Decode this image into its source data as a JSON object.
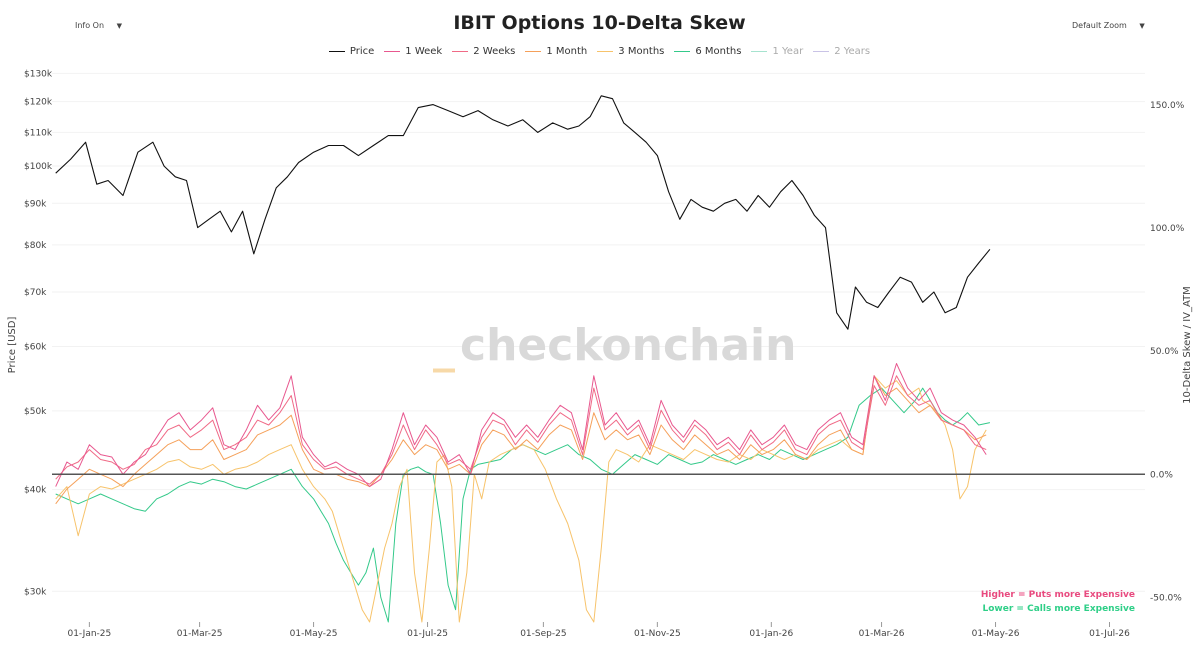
{
  "header": {
    "title": "IBIT Options 10-Delta Skew",
    "info_toggle": "Info On",
    "zoom_select": "Default Zoom",
    "caret": "▼"
  },
  "watermark": {
    "prefix": "_",
    "text": "checkonchain"
  },
  "notes": {
    "higher": "Higher = Puts more Expensive",
    "lower": "Lower = Calls more Expensive"
  },
  "colors": {
    "price": "#111111",
    "w1": "#e8588f",
    "w2": "#f06a86",
    "m1": "#f5a05a",
    "m3": "#f7c36b",
    "m6": "#34c98a",
    "y1": "#a6e3cf",
    "y2": "#c9c3e6",
    "zero_line": "#555555",
    "puts_note": "#e84a7f",
    "calls_note": "#2fcf88",
    "watermark_prefix": "#f7d9a8",
    "watermark_text": "#d9d9d9"
  },
  "chart_data": {
    "type": "line",
    "title": "IBIT Options 10-Delta Skew",
    "x_ticks": [
      "01-Jan-25",
      "01-Mar-25",
      "01-May-25",
      "01-Jul-25",
      "01-Sep-25",
      "01-Nov-25",
      "01-Jan-26",
      "01-Mar-26",
      "01-May-26",
      "01-Jul-26"
    ],
    "x_tick_days": [
      0,
      59,
      120,
      181,
      243,
      304,
      365,
      424,
      485,
      546
    ],
    "x_range_days": [
      -20,
      565
    ],
    "ylabel_left": "Price [USD]",
    "ylabel_right": "10-Delta Skew / IV_ATM",
    "y_left_scale": "log",
    "y_left_range": [
      27500,
      132000
    ],
    "y_left_ticks": [
      30000,
      40000,
      50000,
      60000,
      70000,
      80000,
      90000,
      100000,
      110000,
      120000,
      130000
    ],
    "y_left_tick_labels": [
      "$30k",
      "$40k",
      "$50k",
      "$60k",
      "$70k",
      "$80k",
      "$90k",
      "$100k",
      "$110k",
      "$120k",
      "$130k"
    ],
    "y_right_range": [
      -0.6,
      1.65
    ],
    "y_right_ticks": [
      -0.5,
      0.0,
      0.5,
      1.0,
      1.5
    ],
    "y_right_tick_labels": [
      "-50.0%",
      "0.0%",
      "50.0%",
      "100.0%",
      "150.0%"
    ],
    "legend": [
      {
        "key": "price",
        "name": "Price",
        "visible": true
      },
      {
        "key": "w1",
        "name": "1 Week",
        "visible": true
      },
      {
        "key": "w2",
        "name": "2 Weeks",
        "visible": true
      },
      {
        "key": "m1",
        "name": "1 Month",
        "visible": true
      },
      {
        "key": "m3",
        "name": "3 Months",
        "visible": true
      },
      {
        "key": "m6",
        "name": "6 Months",
        "visible": true
      },
      {
        "key": "y1",
        "name": "1 Year",
        "visible": false
      },
      {
        "key": "y2",
        "name": "2 Years",
        "visible": false
      }
    ],
    "series": [
      {
        "key": "price",
        "axis": "left",
        "x": [
          -18,
          -10,
          -2,
          4,
          10,
          18,
          26,
          34,
          40,
          46,
          52,
          58,
          64,
          70,
          76,
          82,
          88,
          94,
          100,
          106,
          112,
          120,
          128,
          136,
          144,
          152,
          160,
          168,
          176,
          184,
          192,
          200,
          208,
          216,
          224,
          232,
          240,
          248,
          256,
          262,
          268,
          274,
          280,
          286,
          292,
          298,
          304,
          310,
          316,
          322,
          328,
          334,
          340,
          346,
          352,
          358,
          364,
          370,
          376,
          382,
          388,
          394,
          400,
          406,
          410,
          416,
          422,
          428,
          434,
          440,
          446,
          452,
          458,
          464,
          470,
          476,
          482
        ],
        "y": [
          98000,
          102000,
          107000,
          95000,
          96000,
          92000,
          104000,
          107000,
          100000,
          97000,
          96000,
          84000,
          86000,
          88000,
          83000,
          88000,
          78000,
          86000,
          94000,
          97000,
          101000,
          104000,
          106000,
          106000,
          103000,
          106000,
          109000,
          109000,
          118000,
          119000,
          117000,
          115000,
          117000,
          114000,
          112000,
          114000,
          110000,
          113000,
          111000,
          112000,
          115000,
          122000,
          121000,
          113000,
          110000,
          107000,
          103000,
          93000,
          86000,
          91000,
          89000,
          88000,
          90000,
          91000,
          88000,
          92000,
          89000,
          93000,
          96000,
          92000,
          87000,
          84000,
          66000,
          63000,
          71000,
          68000,
          67000,
          70000,
          73000,
          72000,
          68000,
          70000,
          66000,
          67000,
          73000,
          76000,
          79000
        ]
      },
      {
        "key": "w1",
        "axis": "right",
        "x": [
          -18,
          -12,
          -6,
          0,
          6,
          12,
          18,
          24,
          30,
          36,
          42,
          48,
          54,
          60,
          66,
          72,
          78,
          84,
          90,
          96,
          102,
          108,
          114,
          120,
          126,
          132,
          138,
          144,
          150,
          156,
          162,
          168,
          174,
          180,
          186,
          192,
          198,
          204,
          210,
          216,
          222,
          228,
          234,
          240,
          246,
          252,
          258,
          264,
          270,
          276,
          282,
          288,
          294,
          300,
          306,
          312,
          318,
          324,
          330,
          336,
          342,
          348,
          354,
          360,
          366,
          372,
          378,
          384,
          390,
          396,
          402,
          408,
          414,
          420,
          426,
          432,
          438,
          444,
          450,
          456,
          462,
          468,
          474,
          480
        ],
        "y": [
          -0.05,
          0.05,
          0.02,
          0.12,
          0.08,
          0.07,
          0.0,
          0.05,
          0.08,
          0.15,
          0.22,
          0.25,
          0.18,
          0.22,
          0.27,
          0.12,
          0.1,
          0.18,
          0.28,
          0.22,
          0.27,
          0.4,
          0.15,
          0.08,
          0.03,
          0.05,
          0.02,
          0.0,
          -0.05,
          -0.02,
          0.1,
          0.25,
          0.12,
          0.2,
          0.15,
          0.05,
          0.08,
          0.0,
          0.18,
          0.25,
          0.22,
          0.15,
          0.2,
          0.15,
          0.22,
          0.28,
          0.25,
          0.1,
          0.4,
          0.2,
          0.25,
          0.18,
          0.22,
          0.12,
          0.3,
          0.2,
          0.15,
          0.22,
          0.18,
          0.12,
          0.15,
          0.1,
          0.18,
          0.12,
          0.15,
          0.2,
          0.12,
          0.1,
          0.18,
          0.22,
          0.25,
          0.15,
          0.12,
          0.4,
          0.3,
          0.45,
          0.35,
          0.3,
          0.35,
          0.25,
          0.22,
          0.2,
          0.15,
          0.08
        ]
      },
      {
        "key": "w2",
        "axis": "right",
        "x": [
          -18,
          -12,
          -6,
          0,
          6,
          12,
          18,
          24,
          30,
          36,
          42,
          48,
          54,
          60,
          66,
          72,
          78,
          84,
          90,
          96,
          102,
          108,
          114,
          120,
          126,
          132,
          138,
          144,
          150,
          156,
          162,
          168,
          174,
          180,
          186,
          192,
          198,
          204,
          210,
          216,
          222,
          228,
          234,
          240,
          246,
          252,
          258,
          264,
          270,
          276,
          282,
          288,
          294,
          300,
          306,
          312,
          318,
          324,
          330,
          336,
          342,
          348,
          354,
          360,
          366,
          372,
          378,
          384,
          390,
          396,
          402,
          408,
          414,
          420,
          426,
          432,
          438,
          444,
          450,
          456,
          462,
          468,
          474,
          480
        ],
        "y": [
          -0.02,
          0.03,
          0.05,
          0.1,
          0.06,
          0.05,
          0.02,
          0.04,
          0.1,
          0.12,
          0.18,
          0.2,
          0.15,
          0.18,
          0.22,
          0.1,
          0.12,
          0.15,
          0.22,
          0.2,
          0.25,
          0.32,
          0.12,
          0.06,
          0.02,
          0.03,
          0.0,
          -0.02,
          -0.04,
          0.0,
          0.08,
          0.2,
          0.1,
          0.18,
          0.12,
          0.04,
          0.06,
          0.02,
          0.15,
          0.22,
          0.2,
          0.12,
          0.18,
          0.13,
          0.2,
          0.25,
          0.22,
          0.08,
          0.35,
          0.18,
          0.22,
          0.16,
          0.2,
          0.1,
          0.26,
          0.18,
          0.13,
          0.2,
          0.16,
          0.1,
          0.13,
          0.08,
          0.16,
          0.1,
          0.13,
          0.18,
          0.1,
          0.08,
          0.16,
          0.2,
          0.22,
          0.13,
          0.1,
          0.36,
          0.28,
          0.4,
          0.32,
          0.28,
          0.3,
          0.22,
          0.2,
          0.18,
          0.12,
          0.1
        ]
      },
      {
        "key": "m1",
        "axis": "right",
        "x": [
          -18,
          -12,
          -6,
          0,
          6,
          12,
          18,
          24,
          30,
          36,
          42,
          48,
          54,
          60,
          66,
          72,
          78,
          84,
          90,
          96,
          102,
          108,
          114,
          120,
          126,
          132,
          138,
          144,
          150,
          156,
          162,
          168,
          174,
          180,
          186,
          192,
          198,
          204,
          210,
          216,
          222,
          228,
          234,
          240,
          246,
          252,
          258,
          264,
          270,
          276,
          282,
          288,
          294,
          300,
          306,
          312,
          318,
          324,
          330,
          336,
          342,
          348,
          354,
          360,
          366,
          372,
          378,
          384,
          390,
          396,
          402,
          408,
          414,
          420,
          426,
          432,
          438,
          444,
          450,
          456,
          462,
          468,
          474,
          480
        ],
        "y": [
          -0.12,
          -0.06,
          -0.02,
          0.02,
          0.0,
          -0.02,
          -0.05,
          0.0,
          0.04,
          0.08,
          0.12,
          0.14,
          0.1,
          0.1,
          0.14,
          0.06,
          0.08,
          0.1,
          0.16,
          0.18,
          0.2,
          0.24,
          0.1,
          0.02,
          0.0,
          0.0,
          -0.02,
          -0.03,
          -0.05,
          0.0,
          0.06,
          0.14,
          0.08,
          0.12,
          0.1,
          0.02,
          0.04,
          0.0,
          0.12,
          0.18,
          0.16,
          0.1,
          0.14,
          0.1,
          0.16,
          0.2,
          0.18,
          0.06,
          0.25,
          0.14,
          0.18,
          0.14,
          0.16,
          0.08,
          0.2,
          0.14,
          0.1,
          0.16,
          0.12,
          0.08,
          0.1,
          0.06,
          0.12,
          0.08,
          0.1,
          0.14,
          0.08,
          0.06,
          0.12,
          0.16,
          0.18,
          0.1,
          0.08,
          0.4,
          0.32,
          0.35,
          0.3,
          0.25,
          0.28,
          0.22,
          0.2,
          0.18,
          0.14,
          0.16
        ]
      },
      {
        "key": "m3",
        "axis": "right",
        "x": [
          -18,
          -12,
          -6,
          0,
          6,
          12,
          18,
          24,
          30,
          36,
          42,
          48,
          54,
          60,
          66,
          72,
          78,
          84,
          90,
          96,
          102,
          108,
          114,
          120,
          126,
          130,
          134,
          138,
          142,
          146,
          150,
          154,
          158,
          162,
          166,
          170,
          174,
          178,
          182,
          186,
          190,
          194,
          198,
          202,
          206,
          210,
          214,
          220,
          226,
          232,
          238,
          244,
          250,
          256,
          262,
          266,
          270,
          274,
          278,
          282,
          288,
          294,
          300,
          306,
          312,
          318,
          324,
          330,
          336,
          342,
          348,
          354,
          360,
          366,
          372,
          378,
          384,
          390,
          396,
          402,
          408,
          414,
          420,
          426,
          432,
          438,
          444,
          446,
          450,
          454,
          458,
          462,
          466,
          470,
          474,
          480
        ],
        "y": [
          -0.1,
          -0.05,
          -0.25,
          -0.08,
          -0.05,
          -0.06,
          -0.04,
          -0.02,
          0.0,
          0.02,
          0.05,
          0.06,
          0.03,
          0.02,
          0.04,
          0.0,
          0.02,
          0.03,
          0.05,
          0.08,
          0.1,
          0.12,
          0.02,
          -0.05,
          -0.1,
          -0.15,
          -0.25,
          -0.35,
          -0.45,
          -0.55,
          -0.6,
          -0.45,
          -0.3,
          -0.2,
          -0.05,
          0.02,
          -0.4,
          -0.6,
          -0.3,
          0.05,
          0.08,
          -0.05,
          -0.6,
          -0.4,
          0.0,
          -0.1,
          0.05,
          0.08,
          0.1,
          0.12,
          0.1,
          0.02,
          -0.1,
          -0.2,
          -0.35,
          -0.55,
          -0.6,
          -0.3,
          0.05,
          0.1,
          0.08,
          0.05,
          0.12,
          0.1,
          0.08,
          0.06,
          0.1,
          0.08,
          0.06,
          0.05,
          0.08,
          0.06,
          0.1,
          0.08,
          0.06,
          0.08,
          0.06,
          0.1,
          0.12,
          0.14,
          0.1,
          0.08,
          0.4,
          0.35,
          0.38,
          0.32,
          0.35,
          0.3,
          0.28,
          0.25,
          0.2,
          0.1,
          -0.1,
          -0.05,
          0.1,
          0.18
        ]
      },
      {
        "key": "m6",
        "axis": "right",
        "x": [
          -18,
          -12,
          -6,
          0,
          6,
          12,
          18,
          24,
          30,
          36,
          42,
          48,
          54,
          60,
          66,
          72,
          78,
          84,
          90,
          96,
          102,
          108,
          114,
          120,
          124,
          128,
          132,
          136,
          140,
          144,
          148,
          152,
          156,
          160,
          164,
          168,
          172,
          176,
          180,
          184,
          188,
          192,
          196,
          200,
          204,
          208,
          214,
          220,
          226,
          232,
          238,
          244,
          250,
          256,
          262,
          268,
          274,
          280,
          286,
          292,
          298,
          304,
          310,
          316,
          322,
          328,
          334,
          340,
          346,
          352,
          358,
          364,
          370,
          376,
          382,
          388,
          394,
          400,
          406,
          412,
          418,
          424,
          430,
          436,
          442,
          446,
          450,
          454,
          458,
          462,
          466,
          470,
          476,
          482
        ],
        "y": [
          -0.08,
          -0.1,
          -0.12,
          -0.1,
          -0.08,
          -0.1,
          -0.12,
          -0.14,
          -0.15,
          -0.1,
          -0.08,
          -0.05,
          -0.03,
          -0.04,
          -0.02,
          -0.03,
          -0.05,
          -0.06,
          -0.04,
          -0.02,
          0.0,
          0.02,
          -0.05,
          -0.1,
          -0.15,
          -0.2,
          -0.28,
          -0.35,
          -0.4,
          -0.45,
          -0.4,
          -0.3,
          -0.5,
          -0.6,
          -0.2,
          0.0,
          0.02,
          0.03,
          0.01,
          0.0,
          -0.2,
          -0.45,
          -0.55,
          -0.1,
          0.02,
          0.04,
          0.05,
          0.06,
          0.1,
          0.12,
          0.1,
          0.08,
          0.1,
          0.12,
          0.08,
          0.06,
          0.02,
          0.0,
          0.04,
          0.08,
          0.06,
          0.04,
          0.08,
          0.06,
          0.04,
          0.05,
          0.08,
          0.06,
          0.04,
          0.06,
          0.08,
          0.06,
          0.1,
          0.08,
          0.06,
          0.08,
          0.1,
          0.12,
          0.15,
          0.28,
          0.32,
          0.35,
          0.3,
          0.25,
          0.3,
          0.35,
          0.3,
          0.25,
          0.22,
          0.2,
          0.22,
          0.25,
          0.2,
          0.21
        ]
      }
    ],
    "zero_line": 0.0
  }
}
